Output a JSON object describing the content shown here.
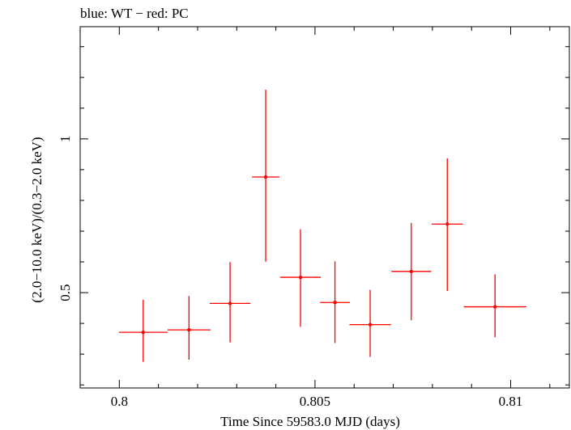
{
  "chart_data": {
    "type": "scatter",
    "title": "blue: WT − red: PC",
    "xlabel": "Time Since 59583.0 MJD (days)",
    "ylabel": "(2.0−10.0 keV)/(0.3−2.0 keV)",
    "xlim": [
      0.799,
      0.8115
    ],
    "ylim": [
      0.19,
      1.365
    ],
    "x_ticks": [
      {
        "value": 0.8,
        "label": "0.8"
      },
      {
        "value": 0.805,
        "label": "0.805"
      },
      {
        "value": 0.81,
        "label": "0.81"
      }
    ],
    "y_ticks": [
      {
        "value": 0.5,
        "label": "0.5"
      },
      {
        "value": 1.0,
        "label": "1"
      }
    ],
    "series": [
      {
        "color": "#ff0000",
        "points": [
          {
            "x": 0.80061,
            "xerr": 0.00062,
            "y": 0.371,
            "ylo": 0.275,
            "yhi": 0.477
          },
          {
            "x": 0.80178,
            "xerr": 0.00055,
            "y": 0.379,
            "ylo": 0.282,
            "yhi": 0.489
          },
          {
            "x": 0.80283,
            "xerr": 0.00052,
            "y": 0.465,
            "ylo": 0.338,
            "yhi": 0.599
          },
          {
            "x": 0.80374,
            "xerr": 0.00035,
            "y": 0.876,
            "ylo": 0.601,
            "yhi": 1.16
          },
          {
            "x": 0.80463,
            "xerr": 0.00052,
            "y": 0.55,
            "ylo": 0.389,
            "yhi": 0.706
          },
          {
            "x": 0.80551,
            "xerr": 0.00038,
            "y": 0.468,
            "ylo": 0.336,
            "yhi": 0.602
          },
          {
            "x": 0.80641,
            "xerr": 0.00053,
            "y": 0.396,
            "ylo": 0.291,
            "yhi": 0.509
          },
          {
            "x": 0.80746,
            "xerr": 0.00051,
            "y": 0.569,
            "ylo": 0.41,
            "yhi": 0.727
          },
          {
            "x": 0.80838,
            "xerr": 0.0004,
            "y": 0.723,
            "ylo": 0.505,
            "yhi": 0.937
          },
          {
            "x": 0.8096,
            "xerr": 0.0008,
            "y": 0.454,
            "ylo": 0.355,
            "yhi": 0.56
          }
        ]
      }
    ]
  }
}
